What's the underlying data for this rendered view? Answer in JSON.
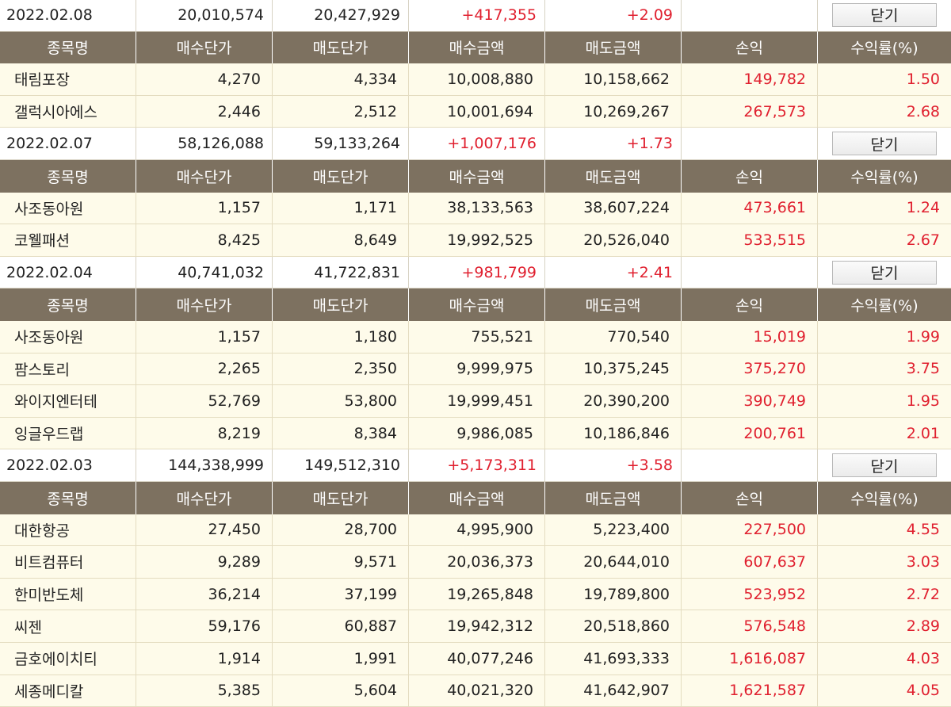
{
  "header_labels": [
    "종목명",
    "매수단가",
    "매도단가",
    "매수금액",
    "매도금액",
    "손익",
    "수익률(%)"
  ],
  "groups": [
    {
      "date": "2022.02.08",
      "buy_total": "20,010,574",
      "sell_total": "20,427,929",
      "profit": "+417,355",
      "rate": "+2.09",
      "close_label": "닫기",
      "rows": [
        {
          "name": "태림포장",
          "buy_price": "4,270",
          "sell_price": "4,334",
          "buy_amount": "10,008,880",
          "sell_amount": "10,158,662",
          "profit": "149,782",
          "rate": "1.50"
        },
        {
          "name": "갤럭시아에스",
          "buy_price": "2,446",
          "sell_price": "2,512",
          "buy_amount": "10,001,694",
          "sell_amount": "10,269,267",
          "profit": "267,573",
          "rate": "2.68"
        }
      ]
    },
    {
      "date": "2022.02.07",
      "buy_total": "58,126,088",
      "sell_total": "59,133,264",
      "profit": "+1,007,176",
      "rate": "+1.73",
      "close_label": "닫기",
      "rows": [
        {
          "name": "사조동아원",
          "buy_price": "1,157",
          "sell_price": "1,171",
          "buy_amount": "38,133,563",
          "sell_amount": "38,607,224",
          "profit": "473,661",
          "rate": "1.24"
        },
        {
          "name": "코웰패션",
          "buy_price": "8,425",
          "sell_price": "8,649",
          "buy_amount": "19,992,525",
          "sell_amount": "20,526,040",
          "profit": "533,515",
          "rate": "2.67"
        }
      ]
    },
    {
      "date": "2022.02.04",
      "buy_total": "40,741,032",
      "sell_total": "41,722,831",
      "profit": "+981,799",
      "rate": "+2.41",
      "close_label": "닫기",
      "rows": [
        {
          "name": "사조동아원",
          "buy_price": "1,157",
          "sell_price": "1,180",
          "buy_amount": "755,521",
          "sell_amount": "770,540",
          "profit": "15,019",
          "rate": "1.99"
        },
        {
          "name": "팜스토리",
          "buy_price": "2,265",
          "sell_price": "2,350",
          "buy_amount": "9,999,975",
          "sell_amount": "10,375,245",
          "profit": "375,270",
          "rate": "3.75"
        },
        {
          "name": "와이지엔터테",
          "buy_price": "52,769",
          "sell_price": "53,800",
          "buy_amount": "19,999,451",
          "sell_amount": "20,390,200",
          "profit": "390,749",
          "rate": "1.95"
        },
        {
          "name": "잉글우드랩",
          "buy_price": "8,219",
          "sell_price": "8,384",
          "buy_amount": "9,986,085",
          "sell_amount": "10,186,846",
          "profit": "200,761",
          "rate": "2.01"
        }
      ]
    },
    {
      "date": "2022.02.03",
      "buy_total": "144,338,999",
      "sell_total": "149,512,310",
      "profit": "+5,173,311",
      "rate": "+3.58",
      "close_label": "닫기",
      "rows": [
        {
          "name": "대한항공",
          "buy_price": "27,450",
          "sell_price": "28,700",
          "buy_amount": "4,995,900",
          "sell_amount": "5,223,400",
          "profit": "227,500",
          "rate": "4.55"
        },
        {
          "name": "비트컴퓨터",
          "buy_price": "9,289",
          "sell_price": "9,571",
          "buy_amount": "20,036,373",
          "sell_amount": "20,644,010",
          "profit": "607,637",
          "rate": "3.03"
        },
        {
          "name": "한미반도체",
          "buy_price": "36,214",
          "sell_price": "37,199",
          "buy_amount": "19,265,848",
          "sell_amount": "19,789,800",
          "profit": "523,952",
          "rate": "2.72"
        },
        {
          "name": "씨젠",
          "buy_price": "59,176",
          "sell_price": "60,887",
          "buy_amount": "19,942,312",
          "sell_amount": "20,518,860",
          "profit": "576,548",
          "rate": "2.89"
        },
        {
          "name": "금호에이치티",
          "buy_price": "1,914",
          "sell_price": "1,991",
          "buy_amount": "40,077,246",
          "sell_amount": "41,693,333",
          "profit": "1,616,087",
          "rate": "4.03"
        },
        {
          "name": "세종메디칼",
          "buy_price": "5,385",
          "sell_price": "5,604",
          "buy_amount": "40,021,320",
          "sell_amount": "41,642,907",
          "profit": "1,621,587",
          "rate": "4.05"
        }
      ]
    }
  ]
}
